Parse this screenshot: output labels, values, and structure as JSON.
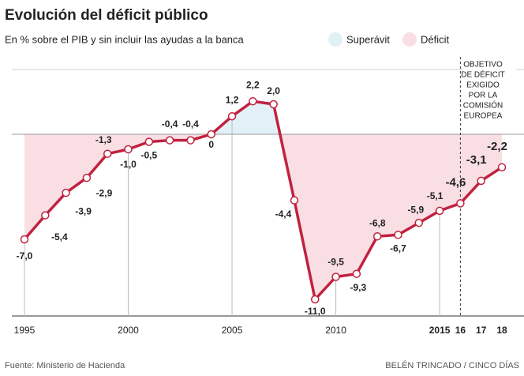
{
  "chart_data": {
    "type": "line",
    "title": "Evolución del déficit público",
    "subtitle": "En % sobre el PIB y sin incluir las ayudas a la banca",
    "categories": [
      "1995",
      null,
      null,
      null,
      null,
      "2000",
      null,
      null,
      null,
      null,
      "2005",
      null,
      null,
      null,
      null,
      "2010",
      null,
      null,
      null,
      null,
      "2015",
      "16",
      "17",
      "18"
    ],
    "series": [
      {
        "name": "Déficit",
        "color": "#c0223f",
        "values": [
          -7.0,
          -5.4,
          -3.9,
          -2.9,
          -1.3,
          -1.0,
          -0.5,
          -0.4,
          -0.4,
          0,
          1.2,
          2.2,
          2.0,
          -4.4,
          -11.0,
          -9.5,
          -9.3,
          -6.8,
          -6.7,
          -5.9,
          -5.1,
          -4.6,
          -3.1,
          -2.2
        ],
        "value_labels": [
          "-7,0",
          "-5,4",
          "-3,9",
          "-2,9",
          "-1,3",
          "-1,0",
          "-0,5",
          "-0,4",
          "-0,4",
          "0",
          "1,2",
          "2,2",
          "2,0",
          "-4,4",
          "-11,0",
          "-9,5",
          "-9,3",
          "-6,8",
          "-6,7",
          "-5,9",
          "-5,1",
          "-4,6",
          "-3,1",
          "-2,2"
        ]
      }
    ],
    "legend": [
      {
        "name": "Superávit",
        "color": "#e2f1f7"
      },
      {
        "name": "Déficit",
        "color": "#f9dfe4"
      }
    ],
    "ylim": [
      -12,
      5
    ],
    "annotation": [
      "OBJETIVO",
      "DE DÉFICIT",
      "EXIGIDO",
      "POR LA",
      "COMISIÓN",
      "EUROPEA"
    ],
    "source": "Fuente: Ministerio de Hacienda",
    "credit": "BELÉN TRINCADO / CINCO DÍAS"
  }
}
